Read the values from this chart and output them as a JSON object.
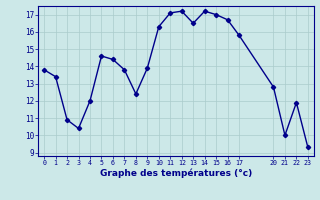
{
  "x": [
    0,
    1,
    2,
    3,
    4,
    5,
    6,
    7,
    8,
    9,
    10,
    11,
    12,
    13,
    14,
    15,
    16,
    17,
    20,
    21,
    22,
    23
  ],
  "y": [
    13.8,
    13.4,
    10.9,
    10.4,
    12.0,
    14.6,
    14.4,
    13.8,
    12.4,
    13.9,
    16.3,
    17.1,
    17.2,
    16.5,
    17.2,
    17.0,
    16.7,
    15.8,
    12.8,
    10.0,
    11.9,
    9.3
  ],
  "line_color": "#00008B",
  "marker": "D",
  "marker_size": 2.2,
  "linewidth": 1.0,
  "bg_color": "#cce8e8",
  "grid_color": "#aacccc",
  "xlabel": "Graphe des températures (°c)",
  "xlabel_color": "#00008B",
  "ylim": [
    8.8,
    17.5
  ],
  "xlim": [
    -0.5,
    23.5
  ],
  "ytick_vals": [
    9,
    10,
    11,
    12,
    13,
    14,
    15,
    16,
    17
  ],
  "axis_color": "#00008B"
}
